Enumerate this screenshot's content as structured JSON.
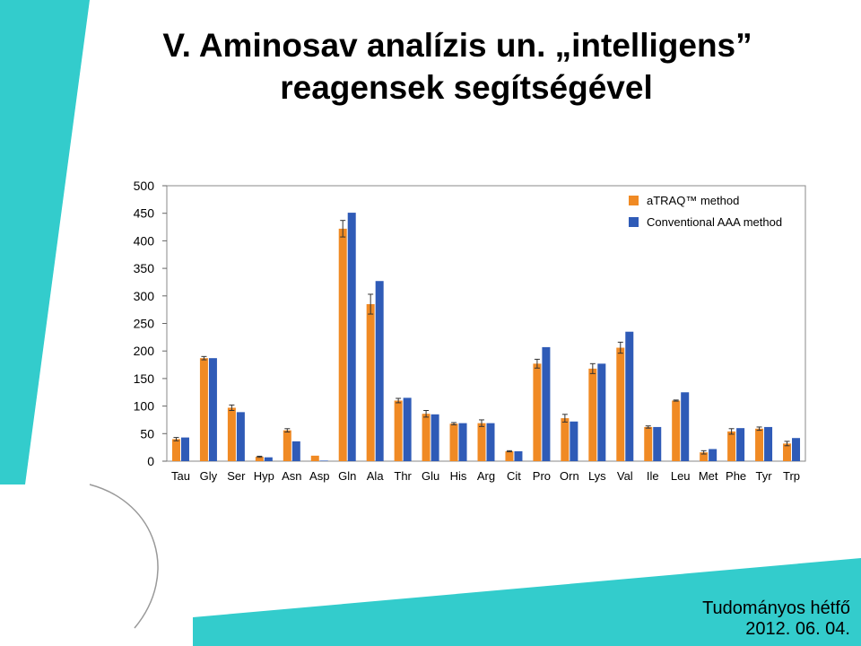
{
  "slide": {
    "title_line1": "V. Aminosav analízis un. „intelligens”",
    "title_line2": "reagensek segítségével",
    "footer_line1": "Tudományos hétfő",
    "footer_line2": "2012. 06. 04.",
    "accent_color": "#33CCCC"
  },
  "chart_data": {
    "type": "bar",
    "categories": [
      "Tau",
      "Gly",
      "Ser",
      "Hyp",
      "Asn",
      "Asp",
      "Gln",
      "Ala",
      "Thr",
      "Glu",
      "His",
      "Arg",
      "Cit",
      "Pro",
      "Orn",
      "Lys",
      "Val",
      "Ile",
      "Leu",
      "Met",
      "Phe",
      "Tyr",
      "Trp"
    ],
    "series": [
      {
        "name": "aTRAQ™ method",
        "color": "#F08A24",
        "values": [
          40,
          187,
          97,
          8,
          56,
          10,
          422,
          285,
          110,
          86,
          68,
          69,
          18,
          177,
          78,
          168,
          206,
          62,
          110,
          16,
          54,
          59,
          32
        ],
        "errors": [
          3,
          3,
          5,
          1,
          3,
          0,
          15,
          18,
          4,
          6,
          2,
          6,
          1,
          8,
          7,
          9,
          10,
          2,
          1,
          3,
          5,
          3,
          4
        ]
      },
      {
        "name": "Conventional AAA method",
        "color": "#2F5BB7",
        "values": [
          43,
          187,
          89,
          7,
          36,
          1,
          451,
          327,
          115,
          85,
          69,
          69,
          18,
          207,
          72,
          177,
          235,
          62,
          125,
          22,
          60,
          62,
          42
        ]
      }
    ],
    "ylim": [
      0,
      500
    ],
    "yticks": [
      0,
      50,
      100,
      150,
      200,
      250,
      300,
      350,
      400,
      450,
      500
    ],
    "legend_position": "top-right",
    "grid": false
  }
}
